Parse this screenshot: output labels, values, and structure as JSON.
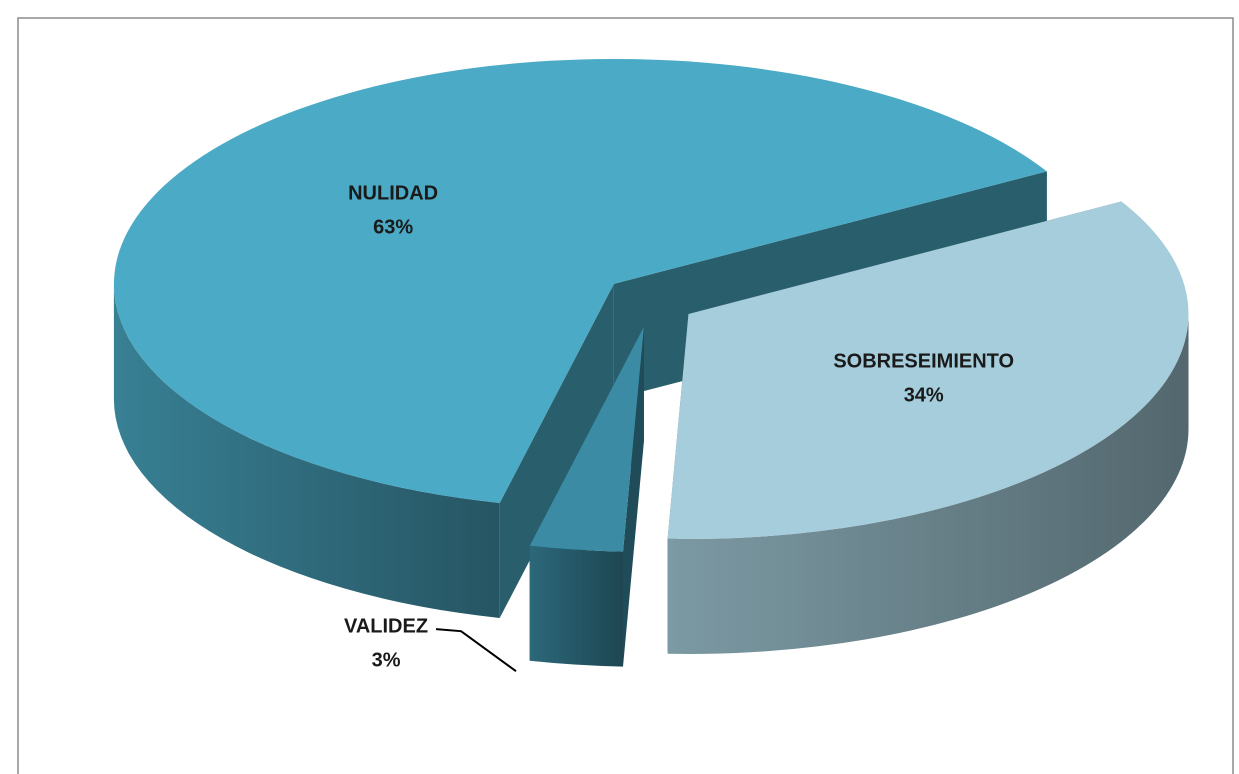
{
  "chart_data": {
    "type": "pie3d",
    "categories": [
      "SOBRESEIMIENTO",
      "VALIDEZ",
      "NULIDAD"
    ],
    "values": [
      34,
      3,
      63
    ],
    "value_labels": [
      "34%",
      "3%",
      "63%"
    ],
    "colors": [
      "#a5cddb",
      "#3a8ba3",
      "#4baac5"
    ]
  }
}
